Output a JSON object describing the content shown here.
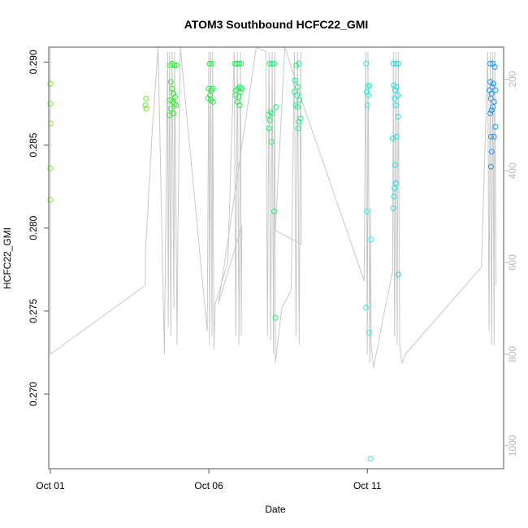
{
  "chart_data": {
    "type": "scatter",
    "title": "ATOM3 Southbound HCFC22_GMI",
    "xlabel": "Date",
    "ylabel": "HCFC22_GMI",
    "x_unit": "day of October",
    "xlim": [
      0.95,
      15.3
    ],
    "ylim": [
      0.2655,
      0.2909
    ],
    "y2lim": [
      1050,
      130
    ],
    "x_ticks": [
      {
        "value": 1,
        "label": "Oct 01"
      },
      {
        "value": 6,
        "label": "Oct 06"
      },
      {
        "value": 11,
        "label": "Oct 11"
      }
    ],
    "y_ticks": [
      {
        "value": 0.27,
        "label": "0.270"
      },
      {
        "value": 0.275,
        "label": "0.275"
      },
      {
        "value": 0.28,
        "label": "0.280"
      },
      {
        "value": 0.285,
        "label": "0.285"
      },
      {
        "value": 0.29,
        "label": "0.290"
      }
    ],
    "y2_ticks": [
      {
        "value": 200,
        "label": "200"
      },
      {
        "value": 400,
        "label": "400"
      },
      {
        "value": 600,
        "label": "600"
      },
      {
        "value": 800,
        "label": "800"
      },
      {
        "value": 1000,
        "label": "1000"
      }
    ],
    "colors": {
      "axis": "#555555",
      "pressure_line": "#c8c8c8",
      "right_axis": "#b8b8b8"
    },
    "points": [
      {
        "x": 1.0,
        "y": 0.2887,
        "color": "#88ee22"
      },
      {
        "x": 1.0,
        "y": 0.2875,
        "color": "#88ee22"
      },
      {
        "x": 1.02,
        "y": 0.2863,
        "color": "#88ee22"
      },
      {
        "x": 1.0,
        "y": 0.2836,
        "color": "#88ee22"
      },
      {
        "x": 1.0,
        "y": 0.2817,
        "color": "#88ee22"
      },
      {
        "x": 4.02,
        "y": 0.2878,
        "color": "#66ee22"
      },
      {
        "x": 4.0,
        "y": 0.2874,
        "color": "#66ee22"
      },
      {
        "x": 4.03,
        "y": 0.2872,
        "color": "#66ee22"
      },
      {
        "x": 4.78,
        "y": 0.2898,
        "color": "#33ee33"
      },
      {
        "x": 4.85,
        "y": 0.2899,
        "color": "#33ee33"
      },
      {
        "x": 4.92,
        "y": 0.2898,
        "color": "#33ee33"
      },
      {
        "x": 4.98,
        "y": 0.2898,
        "color": "#33ee33"
      },
      {
        "x": 4.8,
        "y": 0.2888,
        "color": "#33ee33"
      },
      {
        "x": 4.84,
        "y": 0.2884,
        "color": "#33ee33"
      },
      {
        "x": 4.88,
        "y": 0.2881,
        "color": "#33ee33"
      },
      {
        "x": 4.94,
        "y": 0.2879,
        "color": "#33ee33"
      },
      {
        "x": 4.78,
        "y": 0.2877,
        "color": "#33ee33"
      },
      {
        "x": 4.86,
        "y": 0.2876,
        "color": "#33ee33"
      },
      {
        "x": 4.92,
        "y": 0.2875,
        "color": "#33ee33"
      },
      {
        "x": 4.97,
        "y": 0.2874,
        "color": "#33ee33"
      },
      {
        "x": 4.8,
        "y": 0.2872,
        "color": "#33ee33"
      },
      {
        "x": 4.76,
        "y": 0.2868,
        "color": "#33ee33"
      },
      {
        "x": 4.88,
        "y": 0.2869,
        "color": "#33ee33"
      },
      {
        "x": 6.02,
        "y": 0.2899,
        "color": "#22ee44"
      },
      {
        "x": 6.1,
        "y": 0.2899,
        "color": "#22ee44"
      },
      {
        "x": 6.0,
        "y": 0.2884,
        "color": "#22ee44"
      },
      {
        "x": 6.08,
        "y": 0.2883,
        "color": "#22ee44"
      },
      {
        "x": 6.12,
        "y": 0.2884,
        "color": "#22ee44"
      },
      {
        "x": 6.04,
        "y": 0.288,
        "color": "#22ee44"
      },
      {
        "x": 5.98,
        "y": 0.2878,
        "color": "#22ee44"
      },
      {
        "x": 6.06,
        "y": 0.2877,
        "color": "#22ee44"
      },
      {
        "x": 6.14,
        "y": 0.2876,
        "color": "#22ee44"
      },
      {
        "x": 6.82,
        "y": 0.2899,
        "color": "#22ee55"
      },
      {
        "x": 6.88,
        "y": 0.2899,
        "color": "#22ee55"
      },
      {
        "x": 6.96,
        "y": 0.2899,
        "color": "#22ee55"
      },
      {
        "x": 7.02,
        "y": 0.2899,
        "color": "#22ee55"
      },
      {
        "x": 6.98,
        "y": 0.2885,
        "color": "#22ee55"
      },
      {
        "x": 6.92,
        "y": 0.2884,
        "color": "#22ee55"
      },
      {
        "x": 7.04,
        "y": 0.2884,
        "color": "#22ee55"
      },
      {
        "x": 6.86,
        "y": 0.2883,
        "color": "#22ee55"
      },
      {
        "x": 7.0,
        "y": 0.2882,
        "color": "#22ee55"
      },
      {
        "x": 6.84,
        "y": 0.288,
        "color": "#22ee55"
      },
      {
        "x": 6.94,
        "y": 0.2879,
        "color": "#22ee55"
      },
      {
        "x": 6.9,
        "y": 0.2876,
        "color": "#22ee55"
      },
      {
        "x": 6.98,
        "y": 0.2874,
        "color": "#22ee55"
      },
      {
        "x": 7.92,
        "y": 0.2899,
        "color": "#22ee77"
      },
      {
        "x": 8.0,
        "y": 0.2899,
        "color": "#22ee77"
      },
      {
        "x": 8.06,
        "y": 0.2899,
        "color": "#22ee77"
      },
      {
        "x": 7.94,
        "y": 0.287,
        "color": "#22ee77"
      },
      {
        "x": 8.0,
        "y": 0.2869,
        "color": "#22ee77"
      },
      {
        "x": 7.88,
        "y": 0.2868,
        "color": "#22ee77"
      },
      {
        "x": 8.12,
        "y": 0.2873,
        "color": "#22ee77"
      },
      {
        "x": 7.92,
        "y": 0.2865,
        "color": "#22ee77"
      },
      {
        "x": 7.9,
        "y": 0.286,
        "color": "#22ee77"
      },
      {
        "x": 7.98,
        "y": 0.2852,
        "color": "#22ee77"
      },
      {
        "x": 8.06,
        "y": 0.281,
        "color": "#22ee77"
      },
      {
        "x": 8.1,
        "y": 0.2746,
        "color": "#22ee77"
      },
      {
        "x": 8.76,
        "y": 0.2898,
        "color": "#22ee88"
      },
      {
        "x": 8.84,
        "y": 0.2899,
        "color": "#22ee88"
      },
      {
        "x": 8.72,
        "y": 0.2889,
        "color": "#22ee88"
      },
      {
        "x": 8.8,
        "y": 0.2885,
        "color": "#22ee88"
      },
      {
        "x": 8.7,
        "y": 0.2882,
        "color": "#22ee88"
      },
      {
        "x": 8.78,
        "y": 0.288,
        "color": "#22ee88"
      },
      {
        "x": 8.86,
        "y": 0.2877,
        "color": "#22ee88"
      },
      {
        "x": 8.74,
        "y": 0.2874,
        "color": "#22ee88"
      },
      {
        "x": 8.8,
        "y": 0.2873,
        "color": "#22ee88"
      },
      {
        "x": 8.9,
        "y": 0.2866,
        "color": "#22ee88"
      },
      {
        "x": 8.84,
        "y": 0.2864,
        "color": "#22ee88"
      },
      {
        "x": 8.82,
        "y": 0.286,
        "color": "#22ee88"
      },
      {
        "x": 10.96,
        "y": 0.2899,
        "color": "#22eedd"
      },
      {
        "x": 11.06,
        "y": 0.2886,
        "color": "#22eedd"
      },
      {
        "x": 11.02,
        "y": 0.2885,
        "color": "#22eedd"
      },
      {
        "x": 10.98,
        "y": 0.2882,
        "color": "#22eedd"
      },
      {
        "x": 11.04,
        "y": 0.288,
        "color": "#22eedd"
      },
      {
        "x": 11.0,
        "y": 0.2874,
        "color": "#22eedd"
      },
      {
        "x": 10.98,
        "y": 0.281,
        "color": "#22eedd"
      },
      {
        "x": 11.12,
        "y": 0.2793,
        "color": "#22eedd"
      },
      {
        "x": 10.96,
        "y": 0.2752,
        "color": "#22eedd"
      },
      {
        "x": 11.06,
        "y": 0.2737,
        "color": "#22eedd"
      },
      {
        "x": 11.1,
        "y": 0.2661,
        "color": "#22eedd"
      },
      {
        "x": 11.82,
        "y": 0.2899,
        "color": "#22e0e0"
      },
      {
        "x": 11.9,
        "y": 0.2899,
        "color": "#22e0e0"
      },
      {
        "x": 11.98,
        "y": 0.2899,
        "color": "#22e0e0"
      },
      {
        "x": 11.84,
        "y": 0.2886,
        "color": "#22e0e0"
      },
      {
        "x": 11.92,
        "y": 0.2885,
        "color": "#22e0e0"
      },
      {
        "x": 11.88,
        "y": 0.2883,
        "color": "#22e0e0"
      },
      {
        "x": 11.96,
        "y": 0.288,
        "color": "#22e0e0"
      },
      {
        "x": 11.86,
        "y": 0.2878,
        "color": "#22e0e0"
      },
      {
        "x": 11.9,
        "y": 0.2874,
        "color": "#22e0e0"
      },
      {
        "x": 11.98,
        "y": 0.2867,
        "color": "#22e0e0"
      },
      {
        "x": 11.92,
        "y": 0.2855,
        "color": "#22e0e0"
      },
      {
        "x": 11.8,
        "y": 0.2854,
        "color": "#22e0e0"
      },
      {
        "x": 11.88,
        "y": 0.2838,
        "color": "#22e0e0"
      },
      {
        "x": 11.9,
        "y": 0.2827,
        "color": "#22e0e0"
      },
      {
        "x": 11.86,
        "y": 0.2824,
        "color": "#22e0e0"
      },
      {
        "x": 11.84,
        "y": 0.2819,
        "color": "#22e0e0"
      },
      {
        "x": 11.82,
        "y": 0.2812,
        "color": "#22e0e0"
      },
      {
        "x": 11.98,
        "y": 0.2772,
        "color": "#22e0e0"
      },
      {
        "x": 14.88,
        "y": 0.2899,
        "color": "#2299ee"
      },
      {
        "x": 14.96,
        "y": 0.2899,
        "color": "#2299ee"
      },
      {
        "x": 15.02,
        "y": 0.2897,
        "color": "#2299ee"
      },
      {
        "x": 14.88,
        "y": 0.2888,
        "color": "#2299ee"
      },
      {
        "x": 14.98,
        "y": 0.2887,
        "color": "#2299ee"
      },
      {
        "x": 14.94,
        "y": 0.2885,
        "color": "#2299ee"
      },
      {
        "x": 14.86,
        "y": 0.2883,
        "color": "#2299ee"
      },
      {
        "x": 15.04,
        "y": 0.2883,
        "color": "#2299ee"
      },
      {
        "x": 14.92,
        "y": 0.2881,
        "color": "#2299ee"
      },
      {
        "x": 14.9,
        "y": 0.2878,
        "color": "#2299ee"
      },
      {
        "x": 15.0,
        "y": 0.2876,
        "color": "#2299ee"
      },
      {
        "x": 14.96,
        "y": 0.2873,
        "color": "#2299ee"
      },
      {
        "x": 14.92,
        "y": 0.2871,
        "color": "#2299ee"
      },
      {
        "x": 14.88,
        "y": 0.2869,
        "color": "#2299ee"
      },
      {
        "x": 15.04,
        "y": 0.2861,
        "color": "#2299ee"
      },
      {
        "x": 14.9,
        "y": 0.2855,
        "color": "#2299ee"
      },
      {
        "x": 15.0,
        "y": 0.2855,
        "color": "#2299ee"
      },
      {
        "x": 14.92,
        "y": 0.2846,
        "color": "#2299ee"
      },
      {
        "x": 14.9,
        "y": 0.2837,
        "color": "#2299ee"
      }
    ],
    "pressure_path": [
      [
        1.0,
        130
      ],
      [
        1.0,
        800
      ],
      [
        4.0,
        650
      ],
      [
        4.0,
        580
      ],
      [
        4.2,
        330
      ],
      [
        4.4,
        130
      ],
      [
        4.6,
        800
      ],
      [
        4.7,
        140
      ],
      [
        4.72,
        740
      ],
      [
        4.76,
        140
      ],
      [
        4.8,
        760
      ],
      [
        4.84,
        140
      ],
      [
        4.9,
        700
      ],
      [
        4.92,
        140
      ],
      [
        5.0,
        780
      ],
      [
        5.02,
        560
      ],
      [
        5.1,
        130
      ],
      [
        5.95,
        750
      ],
      [
        6.0,
        140
      ],
      [
        6.02,
        780
      ],
      [
        6.06,
        140
      ],
      [
        6.1,
        760
      ],
      [
        6.12,
        140
      ],
      [
        6.16,
        790
      ],
      [
        6.2,
        690
      ],
      [
        6.6,
        600
      ],
      [
        6.8,
        140
      ],
      [
        6.85,
        760
      ],
      [
        6.9,
        140
      ],
      [
        6.95,
        780
      ],
      [
        7.0,
        140
      ],
      [
        7.02,
        760
      ],
      [
        7.04,
        520
      ],
      [
        6.3,
        690
      ],
      [
        6.5,
        600
      ],
      [
        7.5,
        130
      ],
      [
        7.8,
        140
      ],
      [
        7.85,
        760
      ],
      [
        7.9,
        140
      ],
      [
        7.95,
        770
      ],
      [
        8.0,
        140
      ],
      [
        8.04,
        800
      ],
      [
        8.08,
        140
      ],
      [
        8.1,
        820
      ],
      [
        8.3,
        700
      ],
      [
        8.6,
        660
      ],
      [
        8.7,
        140
      ],
      [
        8.75,
        760
      ],
      [
        8.8,
        140
      ],
      [
        8.85,
        780
      ],
      [
        8.9,
        140
      ],
      [
        8.92,
        560
      ],
      [
        8.1,
        530
      ],
      [
        8.4,
        130
      ],
      [
        9.0,
        260
      ],
      [
        10.9,
        640
      ],
      [
        10.95,
        140
      ],
      [
        11.0,
        800
      ],
      [
        11.02,
        140
      ],
      [
        11.08,
        820
      ],
      [
        11.1,
        480
      ],
      [
        11.12,
        780
      ],
      [
        11.2,
        830
      ],
      [
        11.5,
        720
      ],
      [
        11.8,
        620
      ],
      [
        11.82,
        140
      ],
      [
        11.86,
        760
      ],
      [
        11.9,
        140
      ],
      [
        11.94,
        780
      ],
      [
        11.98,
        140
      ],
      [
        12.02,
        780
      ],
      [
        12.1,
        820
      ],
      [
        12.2,
        800
      ],
      [
        14.6,
        610
      ],
      [
        14.8,
        140
      ],
      [
        14.84,
        750
      ],
      [
        14.88,
        140
      ],
      [
        14.92,
        780
      ],
      [
        14.96,
        140
      ],
      [
        15.0,
        780
      ],
      [
        15.02,
        140
      ],
      [
        15.06,
        650
      ]
    ]
  }
}
